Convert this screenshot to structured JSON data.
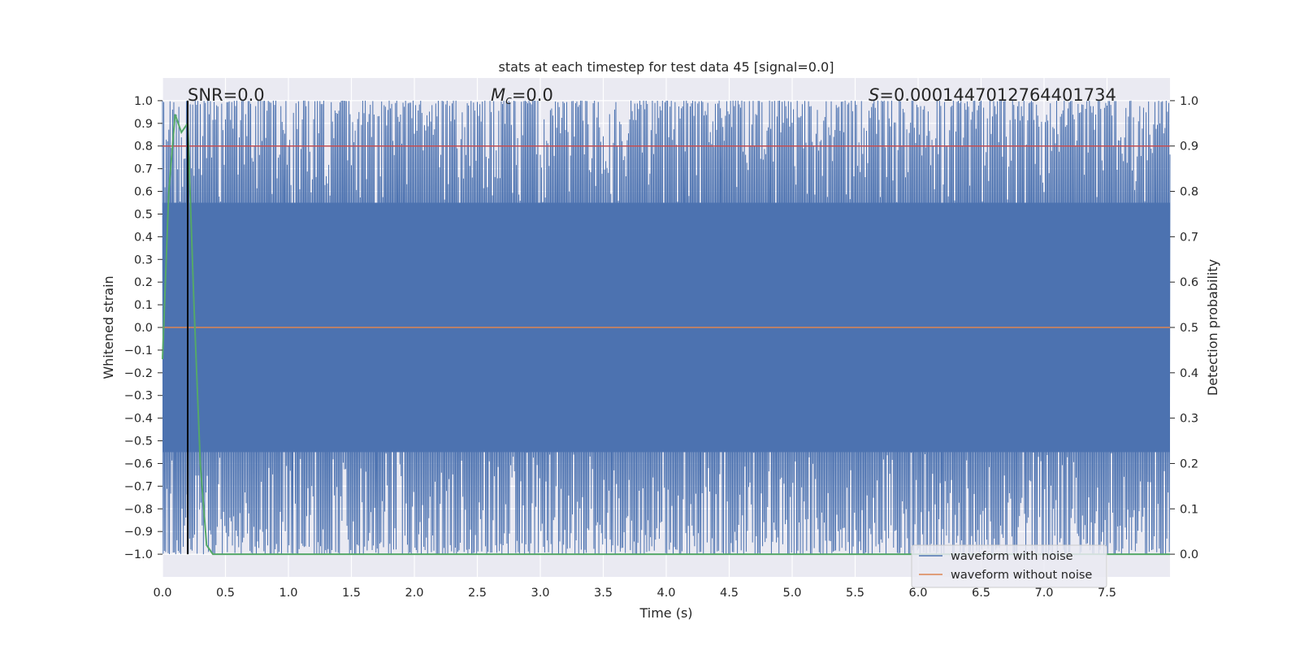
{
  "chart_data": {
    "type": "line",
    "title": "stats at each timestep for test data 45 [signal=0.0]",
    "xlabel": "Time (s)",
    "ylabel": "Whitened strain",
    "y2label": "Detection probability",
    "xlim": [
      0.0,
      8.0
    ],
    "ylim": [
      -1.1,
      1.1
    ],
    "y2lim": [
      -0.05,
      1.05
    ],
    "x_ticks": [
      "0.0",
      "0.5",
      "1.0",
      "1.5",
      "2.0",
      "2.5",
      "3.0",
      "3.5",
      "4.0",
      "4.5",
      "5.0",
      "5.5",
      "6.0",
      "6.5",
      "7.0",
      "7.5"
    ],
    "y_ticks": [
      "1.0",
      "0.9",
      "0.8",
      "0.7",
      "0.6",
      "0.5",
      "0.4",
      "0.3",
      "0.2",
      "0.1",
      "0.0",
      "−0.1",
      "−0.2",
      "−0.3",
      "−0.4",
      "−0.5",
      "−0.6",
      "−0.7",
      "−0.8",
      "−0.9",
      "−1.0"
    ],
    "y2_ticks": [
      "1.0",
      "0.9",
      "0.8",
      "0.7",
      "0.6",
      "0.5",
      "0.4",
      "0.3",
      "0.2",
      "0.1",
      "0.0"
    ],
    "annotations": {
      "snr": "SNR=0.0",
      "mc_symbol": "M",
      "mc_sub": "c",
      "mc_value": "=0.0",
      "s_symbol": "S",
      "s_value": "=0.00014470127644017​34"
    },
    "series": [
      {
        "name": "waveform with noise",
        "color": "#4c72b0",
        "description": "dense noise filling roughly -1.0 to 1.0 over 0-8 s",
        "y_range": [
          -1.0,
          1.0
        ],
        "x_range": [
          0.0,
          8.0
        ]
      },
      {
        "name": "waveform without noise",
        "color": "#dd8452",
        "x": [
          0.0,
          8.0
        ],
        "y": [
          0.0,
          0.0
        ]
      }
    ],
    "detection_probability": {
      "color": "#55a868",
      "x": [
        0.0,
        0.05,
        0.1,
        0.15,
        0.2,
        0.25,
        0.3,
        0.35,
        0.4,
        1.0,
        2.0,
        4.0,
        6.0,
        8.0
      ],
      "y": [
        0.43,
        0.8,
        0.97,
        0.93,
        0.95,
        0.55,
        0.2,
        0.02,
        0.0,
        0.0,
        0.0,
        0.0,
        0.0,
        0.0
      ]
    },
    "threshold": {
      "color": "#c44e52",
      "y2": 0.9
    },
    "marker_line": {
      "color": "#000000",
      "x": 0.2
    },
    "legend": {
      "location": "lower-right",
      "entries": [
        "waveform with noise",
        "waveform without noise"
      ]
    }
  }
}
